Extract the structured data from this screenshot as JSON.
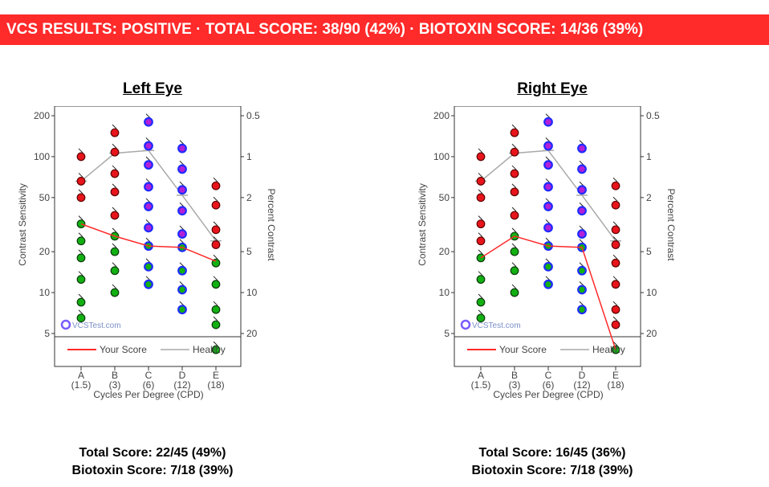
{
  "banner": {
    "text": "VCS RESULTS:  POSITIVE  ·  TOTAL SCORE:  38/90 (42%)  ·  BIOTOXIN SCORE:  14/36 (39%)",
    "color": "#ff2a2a"
  },
  "colors": {
    "your_score": "#ff2a2a",
    "healthy": "#a9a9a9",
    "dot_red": "#e8141b",
    "dot_green": "#12b012",
    "dot_blue_ring": "#1d2bff",
    "dot_purple": "#b21fd6"
  },
  "watermark": "VCSTest.com",
  "chart_data": [
    {
      "type": "scatter",
      "title": "Left Eye",
      "xlabel": "Cycles Per Degree (CPD)",
      "ylabel": "Contrast Sensitivity",
      "y2label": "Percent Contrast",
      "y_scale": "log",
      "ylim": [
        3,
        210
      ],
      "categories": [
        "A",
        "B",
        "C",
        "D",
        "E"
      ],
      "category_sub": [
        "(1.5)",
        "(3)",
        "(6)",
        "(12)",
        "(18)"
      ],
      "yticks": [
        5,
        10,
        20,
        50,
        100,
        200
      ],
      "y2ticks": [
        [
          "0.5",
          200
        ],
        [
          "1",
          100
        ],
        [
          "2",
          50
        ],
        [
          "5",
          20
        ],
        [
          "10",
          10
        ],
        [
          "20",
          5
        ]
      ],
      "legend": [
        "Your Score",
        "Healthy"
      ],
      "legend_position": "bottom",
      "healthy": [
        66,
        106,
        111,
        52,
        24
      ],
      "your_score": [
        32,
        26,
        22,
        21.5,
        17
      ],
      "dots": [
        [
          100,
          66,
          50,
          32,
          24,
          18,
          12.5,
          8.5,
          6.5
        ],
        [
          150,
          108,
          75,
          55,
          37,
          26,
          20,
          14.5,
          10
        ],
        [
          180,
          120,
          87,
          60,
          43,
          30,
          22,
          15.5,
          11.5
        ],
        [
          115,
          81,
          57,
          40,
          27,
          21.5,
          14.5,
          10.5,
          7.5
        ],
        [
          61,
          44,
          29,
          22.5,
          16.5,
          11.5,
          7.5,
          5.8,
          3.8
        ]
      ],
      "total_label": "Total Score:",
      "total_value": "22/45 (49%)",
      "biotoxin_label": "Biotoxin Score:",
      "biotoxin_value": "7/18 (39%)"
    },
    {
      "type": "scatter",
      "title": "Right Eye",
      "xlabel": "Cycles Per Degree (CPD)",
      "ylabel": "Contrast Sensitivity",
      "y2label": "Percent Contrast",
      "y_scale": "log",
      "ylim": [
        3,
        210
      ],
      "categories": [
        "A",
        "B",
        "C",
        "D",
        "E"
      ],
      "category_sub": [
        "(1.5)",
        "(3)",
        "(6)",
        "(12)",
        "(18)"
      ],
      "yticks": [
        5,
        10,
        20,
        50,
        100,
        200
      ],
      "y2ticks": [
        [
          "0.5",
          200
        ],
        [
          "1",
          100
        ],
        [
          "2",
          50
        ],
        [
          "5",
          20
        ],
        [
          "10",
          10
        ],
        [
          "20",
          5
        ]
      ],
      "legend": [
        "Your Score",
        "Healthy"
      ],
      "legend_position": "bottom",
      "healthy": [
        66,
        106,
        111,
        52,
        24
      ],
      "your_score": [
        18,
        26,
        22,
        21.5,
        3.8
      ],
      "dots": [
        [
          100,
          66,
          50,
          32,
          24,
          18,
          12.5,
          8.5,
          6.5
        ],
        [
          150,
          108,
          75,
          55,
          37,
          26,
          20,
          14.5,
          10
        ],
        [
          180,
          120,
          87,
          60,
          43,
          30,
          22,
          15.5,
          11.5
        ],
        [
          115,
          81,
          57,
          40,
          27,
          21.5,
          14.5,
          10.5,
          7.5
        ],
        [
          61,
          44,
          29,
          22.5,
          16.5,
          11.5,
          7.5,
          5.8,
          3.8
        ]
      ],
      "total_label": "Total Score:",
      "total_value": "16/45 (36%)",
      "biotoxin_label": "Biotoxin Score:",
      "biotoxin_value": "7/18 (39%)"
    }
  ]
}
